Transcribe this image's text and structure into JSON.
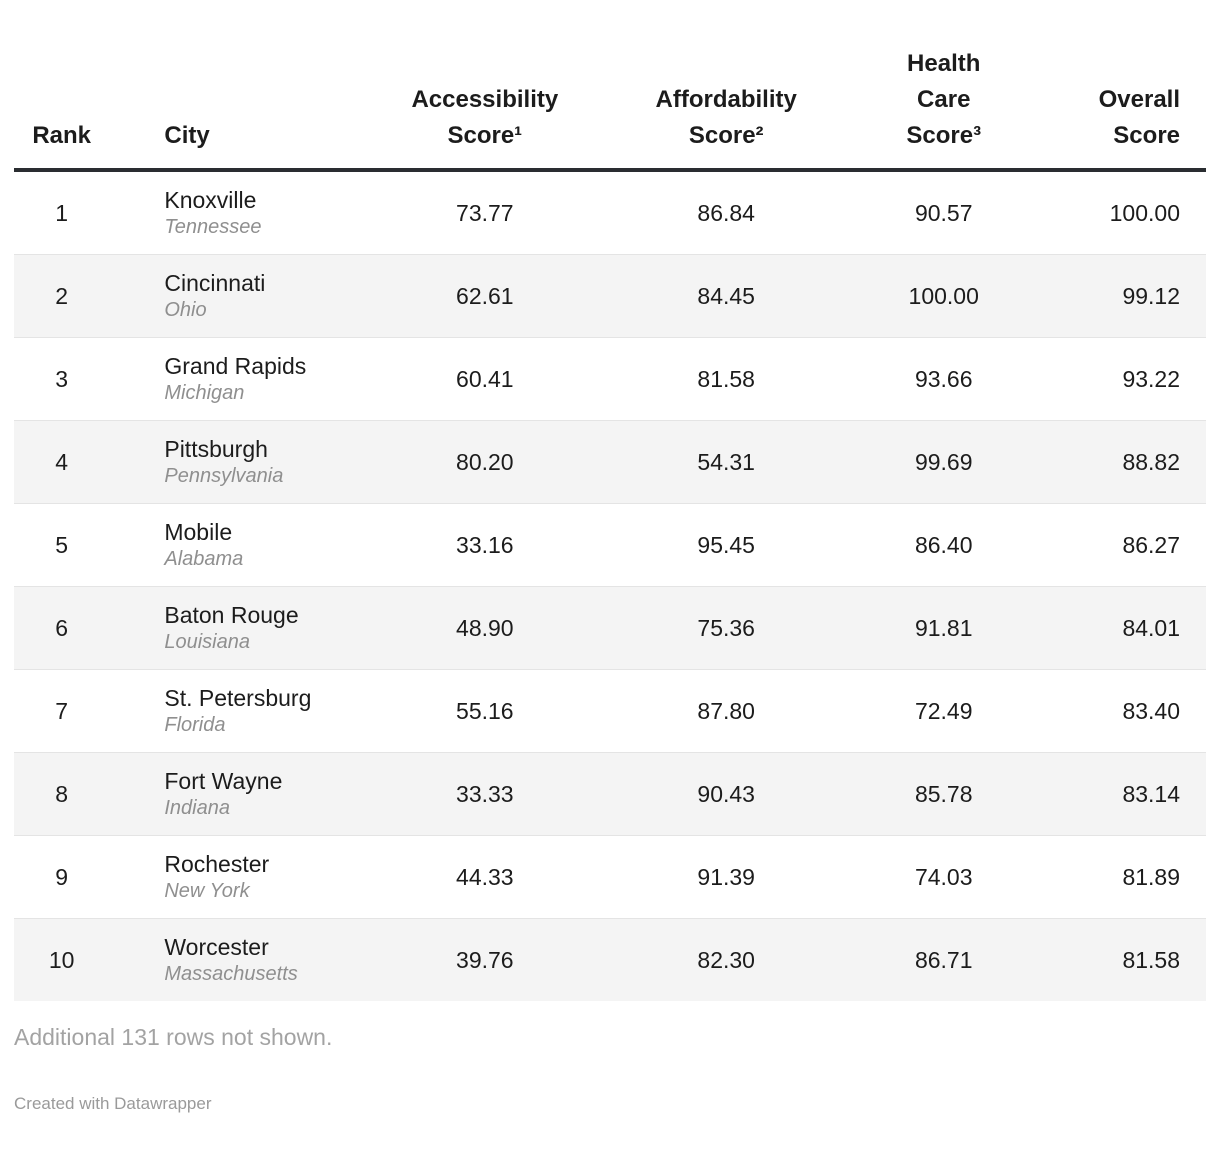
{
  "chart_data": {
    "type": "table",
    "columns": [
      {
        "key": "rank",
        "label": "Rank"
      },
      {
        "key": "city",
        "label": "City"
      },
      {
        "key": "accessibility",
        "label": "Accessibility\nScore¹"
      },
      {
        "key": "affordability",
        "label": "Affordability\nScore²"
      },
      {
        "key": "healthcare",
        "label": "Health\nCare\nScore³"
      },
      {
        "key": "overall",
        "label": "Overall\nScore"
      }
    ],
    "rows": [
      {
        "rank": "1",
        "city": "Knoxville",
        "state": "Tennessee",
        "accessibility": "73.77",
        "affordability": "86.84",
        "healthcare": "90.57",
        "overall": "100.00"
      },
      {
        "rank": "2",
        "city": "Cincinnati",
        "state": "Ohio",
        "accessibility": "62.61",
        "affordability": "84.45",
        "healthcare": "100.00",
        "overall": "99.12"
      },
      {
        "rank": "3",
        "city": "Grand Rapids",
        "state": "Michigan",
        "accessibility": "60.41",
        "affordability": "81.58",
        "healthcare": "93.66",
        "overall": "93.22"
      },
      {
        "rank": "4",
        "city": "Pittsburgh",
        "state": "Pennsylvania",
        "accessibility": "80.20",
        "affordability": "54.31",
        "healthcare": "99.69",
        "overall": "88.82"
      },
      {
        "rank": "5",
        "city": "Mobile",
        "state": "Alabama",
        "accessibility": "33.16",
        "affordability": "95.45",
        "healthcare": "86.40",
        "overall": "86.27"
      },
      {
        "rank": "6",
        "city": "Baton Rouge",
        "state": "Louisiana",
        "accessibility": "48.90",
        "affordability": "75.36",
        "healthcare": "91.81",
        "overall": "84.01"
      },
      {
        "rank": "7",
        "city": "St. Petersburg",
        "state": "Florida",
        "accessibility": "55.16",
        "affordability": "87.80",
        "healthcare": "72.49",
        "overall": "83.40"
      },
      {
        "rank": "8",
        "city": "Fort Wayne",
        "state": "Indiana",
        "accessibility": "33.33",
        "affordability": "90.43",
        "healthcare": "85.78",
        "overall": "83.14"
      },
      {
        "rank": "9",
        "city": "Rochester",
        "state": "New York",
        "accessibility": "44.33",
        "affordability": "91.39",
        "healthcare": "74.03",
        "overall": "81.89"
      },
      {
        "rank": "10",
        "city": "Worcester",
        "state": "Massachusetts",
        "accessibility": "39.76",
        "affordability": "82.30",
        "healthcare": "86.71",
        "overall": "81.58"
      }
    ]
  },
  "footer": {
    "note": "Additional 131 rows not shown.",
    "attribution": "Created with Datawrapper"
  },
  "colors": {
    "header_rule": "#2a2d31",
    "row_alt_background": "#f4f4f4",
    "row_divider": "#e4e4e4",
    "text": "#1c1c1c",
    "state_muted": "#8f8f8f",
    "note_muted": "#a3a3a3",
    "attribution_muted": "#9a9a9a"
  }
}
